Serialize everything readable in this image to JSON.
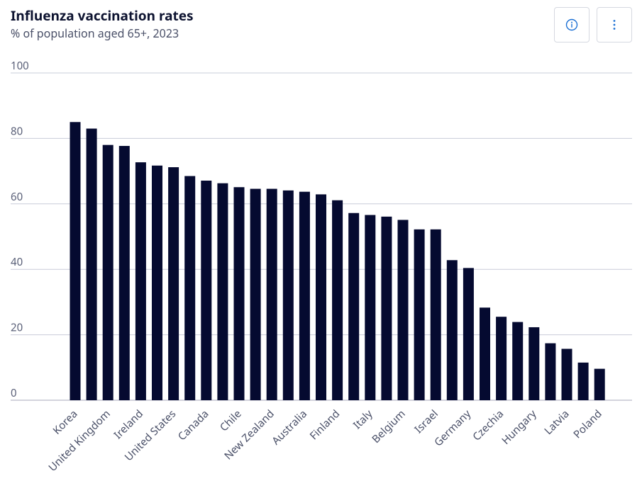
{
  "header": {
    "title": "Influenza vaccination rates",
    "subtitle": "% of population aged 65+, 2023"
  },
  "toolbar": {
    "info_icon": "info-icon",
    "more_icon": "more-vertical-icon"
  },
  "colors": {
    "bar": "#050a30",
    "grid": "#c9ccd8",
    "axis": "#a7aabb",
    "accent": "#1a6fd4"
  },
  "chart_data": {
    "type": "bar",
    "title": "Influenza vaccination rates",
    "subtitle": "% of population aged 65+, 2023",
    "xlabel": "",
    "ylabel": "",
    "ylim": [
      0,
      100
    ],
    "yticks": [
      0,
      20,
      40,
      60,
      80,
      100
    ],
    "grid": true,
    "categories": [
      "Korea",
      "",
      "United Kingdom",
      "",
      "Ireland",
      "",
      "United States",
      "",
      "Canada",
      "",
      "Chile",
      "",
      "New Zealand",
      "",
      "Australia",
      "",
      "Finland",
      "",
      "Italy",
      "",
      "Belgium",
      "",
      "Israel",
      "",
      "Germany",
      "",
      "Czechia",
      "",
      "Hungary",
      "",
      "Latvia",
      "",
      "Poland"
    ],
    "values": [
      85,
      83,
      78,
      77.7,
      72.7,
      71.7,
      71.2,
      68.5,
      67.1,
      66.3,
      65.1,
      64.6,
      64.6,
      64.1,
      63.7,
      62.9,
      61.1,
      57.2,
      56.6,
      56.1,
      55.1,
      52.2,
      52.2,
      42.8,
      40.4,
      28.3,
      25.5,
      23.9,
      22.3,
      17.4,
      15.7,
      11.5,
      9.6
    ]
  }
}
